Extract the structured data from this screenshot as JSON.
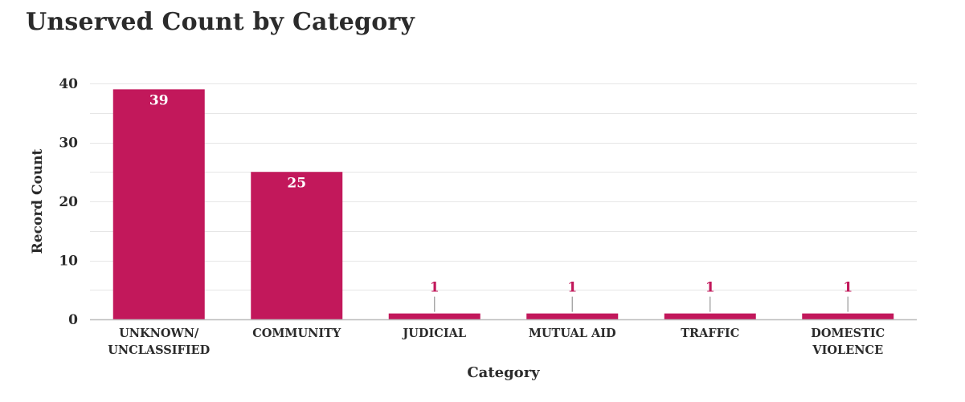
{
  "chart_data": {
    "type": "bar",
    "title": "Unserved Count by Category",
    "xlabel": "Category",
    "ylabel": "Record Count",
    "categories": [
      "UNKNOWN/\nUNCLASSIFIED",
      "COMMUNITY",
      "JUDICIAL",
      "MUTUAL AID",
      "TRAFFIC",
      "DOMESTIC\nVIOLENCE"
    ],
    "values": [
      39,
      25,
      1,
      1,
      1,
      1
    ],
    "ylim": [
      0,
      40
    ],
    "yticks": [
      0,
      10,
      20,
      30,
      40
    ],
    "grid": true,
    "colors": {
      "bar": "#c2185b",
      "label_outside": "#c2185b",
      "label_inside": "#ffffff",
      "grid": "#e6e6e6",
      "axis": "#bdbdbd",
      "text": "#2b2b2b"
    }
  }
}
